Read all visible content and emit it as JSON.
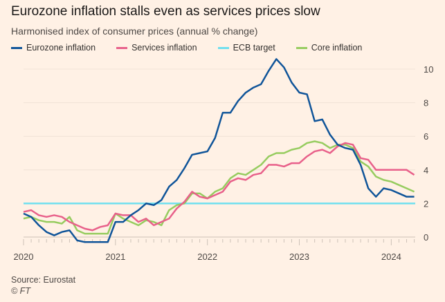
{
  "title": "Eurozone inflation stalls even as services prices slow",
  "subtitle": "Harmonised index of consumer prices (annual % change)",
  "source": "Source: Eurostat",
  "copyright": "© FT",
  "chart_data": {
    "type": "line",
    "start": "2020-01",
    "x_tick_labels": [
      "2020",
      "2021",
      "2022",
      "2023",
      "2024"
    ],
    "y_ticks": [
      0,
      2,
      4,
      6,
      8,
      10
    ],
    "ylim": [
      -0.4,
      10.9
    ],
    "grid": true,
    "legend": "top-left",
    "series": [
      {
        "name": "Eurozone inflation",
        "color": "#0f5499",
        "values": [
          1.4,
          1.2,
          0.7,
          0.3,
          0.1,
          0.3,
          0.4,
          -0.2,
          -0.3,
          -0.3,
          -0.3,
          -0.3,
          0.9,
          0.9,
          1.3,
          1.6,
          2.0,
          1.9,
          2.2,
          3.0,
          3.4,
          4.1,
          4.9,
          5.0,
          5.1,
          5.9,
          7.4,
          7.4,
          8.1,
          8.6,
          8.9,
          9.1,
          9.9,
          10.6,
          10.1,
          9.2,
          8.6,
          8.5,
          6.9,
          7.0,
          6.1,
          5.5,
          5.3,
          5.2,
          4.3,
          2.9,
          2.4,
          2.9,
          2.8,
          2.6,
          2.4,
          2.4
        ]
      },
      {
        "name": "Services inflation",
        "color": "#e8608a",
        "values": [
          1.5,
          1.6,
          1.3,
          1.2,
          1.3,
          1.2,
          0.9,
          0.7,
          0.5,
          0.4,
          0.6,
          0.7,
          1.4,
          1.3,
          1.3,
          0.9,
          1.1,
          0.7,
          0.9,
          1.1,
          1.7,
          2.1,
          2.7,
          2.4,
          2.3,
          2.5,
          2.7,
          3.3,
          3.5,
          3.4,
          3.7,
          3.8,
          4.3,
          4.3,
          4.2,
          4.4,
          4.4,
          4.8,
          5.1,
          5.2,
          5.0,
          5.4,
          5.6,
          5.5,
          4.7,
          4.6,
          4.0,
          4.0,
          4.0,
          4.0,
          4.0,
          3.7
        ]
      },
      {
        "name": "ECB target",
        "color": "#6fdfef",
        "values": [
          2,
          2
        ]
      },
      {
        "name": "Core inflation",
        "color": "#96cc5f",
        "values": [
          1.1,
          1.2,
          1.0,
          0.9,
          0.9,
          0.8,
          1.2,
          0.4,
          0.2,
          0.2,
          0.2,
          0.2,
          1.4,
          1.1,
          0.9,
          0.7,
          1.0,
          0.9,
          0.7,
          1.6,
          1.9,
          2.0,
          2.6,
          2.6,
          2.3,
          2.7,
          2.9,
          3.5,
          3.8,
          3.7,
          4.0,
          4.3,
          4.8,
          5.0,
          5.0,
          5.2,
          5.3,
          5.6,
          5.7,
          5.6,
          5.3,
          5.5,
          5.5,
          5.3,
          4.5,
          4.2,
          3.6,
          3.4,
          3.3,
          3.1,
          2.9,
          2.7
        ]
      }
    ]
  }
}
